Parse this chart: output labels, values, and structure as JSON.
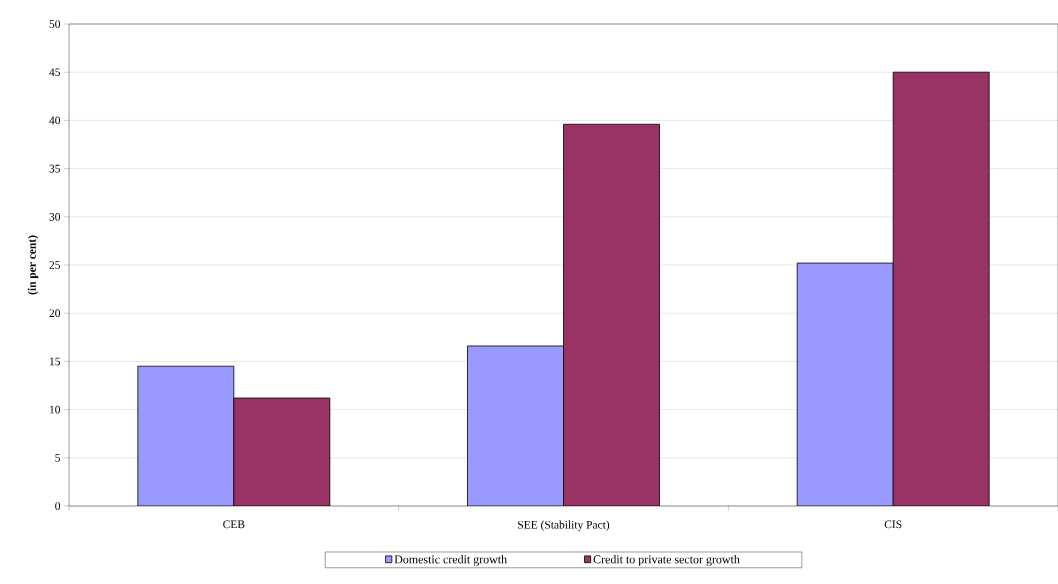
{
  "chart_data": {
    "type": "bar",
    "ylabel": "(in per cent)",
    "categories": [
      "CEB",
      "SEE (Stability Pact)",
      "CIS"
    ],
    "series": [
      {
        "name": "Domestic credit growth",
        "color": "#9999ff",
        "values": [
          14.5,
          16.6,
          25.2
        ]
      },
      {
        "name": "Credit to private sector growth",
        "color": "#993366",
        "values": [
          11.2,
          39.6,
          45.0
        ]
      }
    ],
    "ylim": [
      0,
      50
    ],
    "yticks": [
      0,
      5,
      10,
      15,
      20,
      25,
      30,
      35,
      40,
      45,
      50
    ],
    "grid": "y",
    "legend": "bottom"
  }
}
